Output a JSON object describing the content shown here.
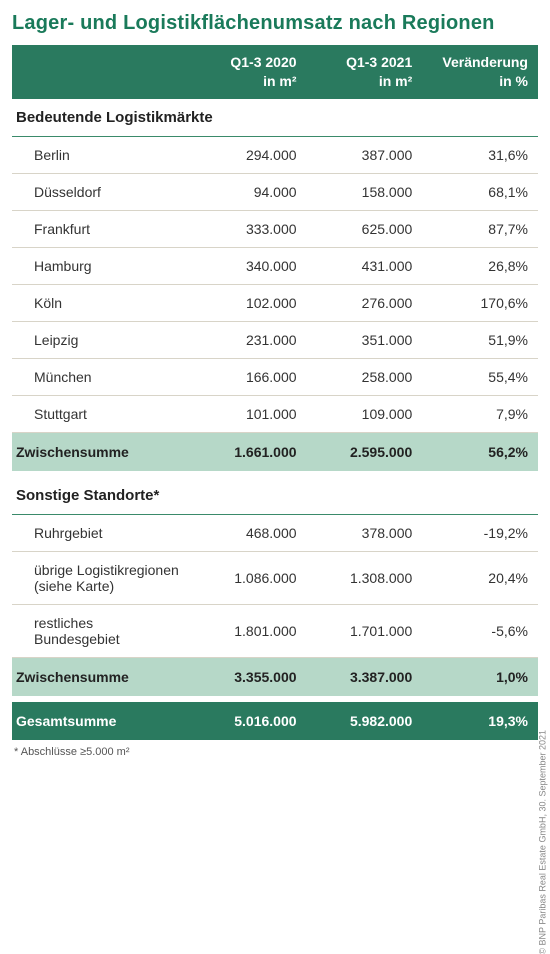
{
  "title": "Lager- und Logistikflächenumsatz nach Regionen",
  "colors": {
    "accent": "#2a7a5f",
    "subtotal_bg": "#b6d8c8",
    "row_border": "#d8d4c8",
    "title_color": "#1a7a5a"
  },
  "columns": {
    "c0": "",
    "c1_l1": "Q1-3 2020",
    "c1_l2": "in m²",
    "c2_l1": "Q1-3 2021",
    "c2_l2": "in m²",
    "c3_l1": "Veränderung",
    "c3_l2": "in %"
  },
  "section1": {
    "heading": "Bedeutende Logistikmärkte",
    "rows": [
      {
        "label": "Berlin",
        "v2020": "294.000",
        "v2021": "387.000",
        "delta": "31,6%"
      },
      {
        "label": "Düsseldorf",
        "v2020": "94.000",
        "v2021": "158.000",
        "delta": "68,1%"
      },
      {
        "label": "Frankfurt",
        "v2020": "333.000",
        "v2021": "625.000",
        "delta": "87,7%"
      },
      {
        "label": "Hamburg",
        "v2020": "340.000",
        "v2021": "431.000",
        "delta": "26,8%"
      },
      {
        "label": "Köln",
        "v2020": "102.000",
        "v2021": "276.000",
        "delta": "170,6%"
      },
      {
        "label": "Leipzig",
        "v2020": "231.000",
        "v2021": "351.000",
        "delta": "51,9%"
      },
      {
        "label": "München",
        "v2020": "166.000",
        "v2021": "258.000",
        "delta": "55,4%"
      },
      {
        "label": "Stuttgart",
        "v2020": "101.000",
        "v2021": "109.000",
        "delta": "7,9%"
      }
    ],
    "subtotal": {
      "label": "Zwischensumme",
      "v2020": "1.661.000",
      "v2021": "2.595.000",
      "delta": "56,2%"
    }
  },
  "section2": {
    "heading": "Sonstige Standorte*",
    "rows": [
      {
        "label": "Ruhrgebiet",
        "v2020": "468.000",
        "v2021": "378.000",
        "delta": "-19,2%"
      },
      {
        "label": "übrige Logistikregionen (siehe Karte)",
        "v2020": "1.086.000",
        "v2021": "1.308.000",
        "delta": "20,4%"
      },
      {
        "label": "restliches Bundesgebiet",
        "v2020": "1.801.000",
        "v2021": "1.701.000",
        "delta": "-5,6%"
      }
    ],
    "subtotal": {
      "label": "Zwischensumme",
      "v2020": "3.355.000",
      "v2021": "3.387.000",
      "delta": "1,0%"
    }
  },
  "total": {
    "label": "Gesamtsumme",
    "v2020": "5.016.000",
    "v2021": "5.982.000",
    "delta": "19,3%"
  },
  "footnote": "* Abschlüsse ≥5.000 m²",
  "credit": "© BNP Paribas Real Estate GmbH, 30. September 2021"
}
